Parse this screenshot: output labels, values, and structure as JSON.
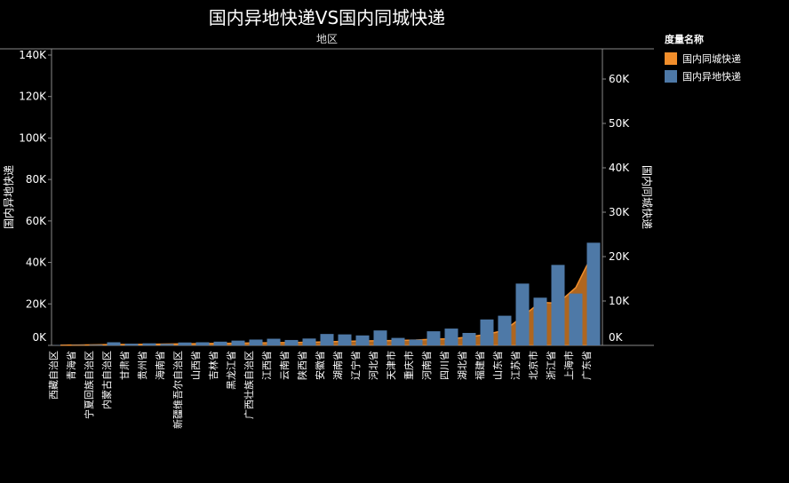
{
  "title": "国内异地快递VS国内同城快递",
  "legend": {
    "title": "度量名称",
    "items": [
      {
        "label": "国内同城快递",
        "color": "#f28e2b"
      },
      {
        "label": "国内异地快递",
        "color": "#4e79a7"
      }
    ]
  },
  "chart_data": {
    "type": "bar",
    "title": "国内异地快递VS国内同城快递",
    "column_header": "地区",
    "ylabel": "国内异地快递",
    "y2label": "国内同城快递",
    "ylim": [
      0,
      140000
    ],
    "y2lim": [
      0,
      66000
    ],
    "yticks": [
      "0K",
      "20K",
      "40K",
      "60K",
      "80K",
      "100K",
      "120K",
      "140K"
    ],
    "y2ticks": [
      "0K",
      "10K",
      "20K",
      "30K",
      "40K",
      "50K",
      "60K"
    ],
    "categories": [
      "西藏自治区",
      "青海省",
      "宁夏回族自治区",
      "内蒙古自治区",
      "甘肃省",
      "贵州省",
      "海南省",
      "新疆维吾尔自治区",
      "山西省",
      "吉林省",
      "黑龙江省",
      "广西壮族自治区",
      "江西省",
      "云南省",
      "陕西省",
      "安徽省",
      "湖南省",
      "辽宁省",
      "河北省",
      "天津市",
      "重庆市",
      "河南省",
      "四川省",
      "湖北省",
      "福建省",
      "山东省",
      "江苏省",
      "北京市",
      "浙江省",
      "上海市",
      "广东省"
    ],
    "series": [
      {
        "name": "国内异地快递",
        "chart": "bar",
        "color": "#4e79a7",
        "values": [
          100,
          200,
          300,
          1500,
          800,
          1000,
          700,
          1400,
          1500,
          1800,
          2300,
          2800,
          3200,
          2600,
          3300,
          5500,
          5300,
          4800,
          7200,
          3600,
          2800,
          6800,
          8100,
          6000,
          12500,
          14300,
          29800,
          23000,
          38800,
          25000,
          49500
        ]
      },
      {
        "name": "国内同城快递",
        "chart": "area",
        "color": "#f28e2b",
        "values": [
          50,
          80,
          120,
          200,
          200,
          250,
          300,
          350,
          400,
          450,
          500,
          550,
          600,
          650,
          700,
          800,
          900,
          1000,
          1050,
          1100,
          1200,
          1400,
          1500,
          1900,
          2500,
          3400,
          6500,
          9700,
          9500,
          13000,
          21000
        ]
      }
    ],
    "grid": false
  }
}
